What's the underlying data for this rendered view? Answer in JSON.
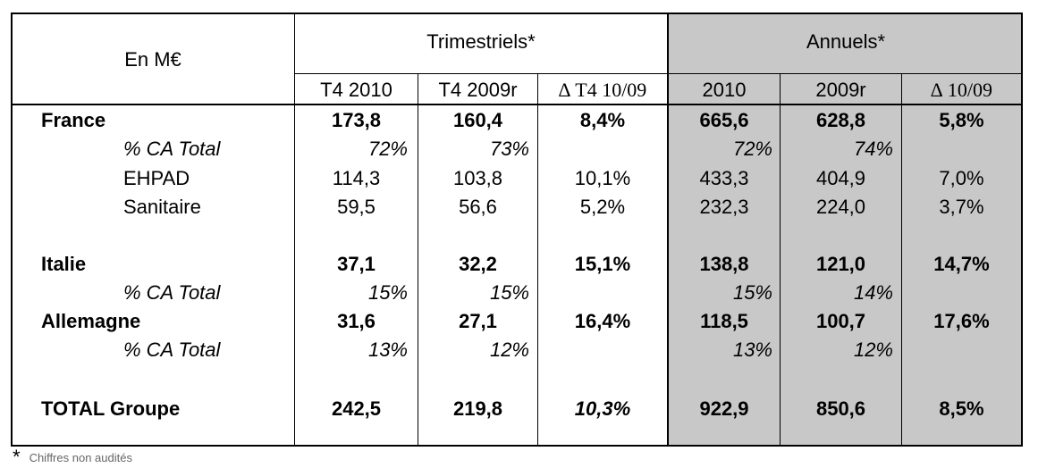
{
  "header": {
    "unit": "En M€",
    "group_quarterly": "Trimestriels*",
    "group_annual": "Annuels*",
    "columns": [
      "T4 2010",
      "T4 2009r",
      "∆ T4 10/09",
      "2010",
      "2009r",
      "∆ 10/09"
    ]
  },
  "rows": {
    "france": {
      "label": "France",
      "values": [
        "173,8",
        "160,4",
        "8,4%",
        "665,6",
        "628,8",
        "5,8%"
      ]
    },
    "france_pct": {
      "label": "% CA Total",
      "values": [
        "72%",
        "73%",
        "",
        "72%",
        "74%",
        ""
      ]
    },
    "ehpad": {
      "label": "EHPAD",
      "values": [
        "114,3",
        "103,8",
        "10,1%",
        "433,3",
        "404,9",
        "7,0%"
      ]
    },
    "sanitaire": {
      "label": "Sanitaire",
      "values": [
        "59,5",
        "56,6",
        "5,2%",
        "232,3",
        "224,0",
        "3,7%"
      ]
    },
    "italie": {
      "label": "Italie",
      "values": [
        "37,1",
        "32,2",
        "15,1%",
        "138,8",
        "121,0",
        "14,7%"
      ]
    },
    "italie_pct": {
      "label": "% CA Total",
      "values": [
        "15%",
        "15%",
        "",
        "15%",
        "14%",
        ""
      ]
    },
    "allemagne": {
      "label": "Allemagne",
      "values": [
        "31,6",
        "27,1",
        "16,4%",
        "118,5",
        "100,7",
        "17,6%"
      ]
    },
    "allemagne_pct": {
      "label": "% CA Total",
      "values": [
        "13%",
        "12%",
        "",
        "13%",
        "12%",
        ""
      ]
    },
    "total": {
      "label": "TOTAL Groupe",
      "values": [
        "242,5",
        "219,8",
        "10,3%",
        "922,9",
        "850,6",
        "8,5%"
      ]
    }
  },
  "footnote": {
    "mark": "*",
    "text": "Chiffres non audités"
  }
}
